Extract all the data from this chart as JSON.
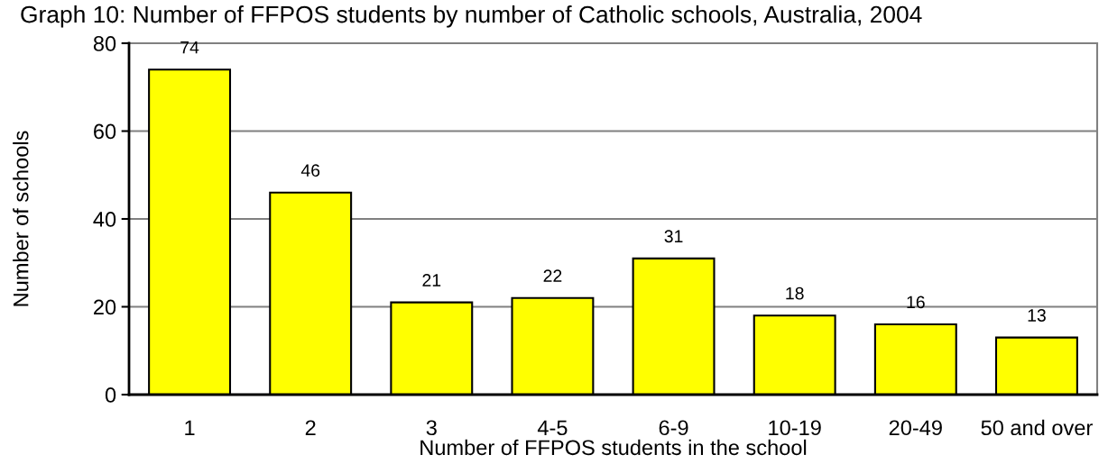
{
  "chart_data": {
    "type": "bar",
    "title": "Graph 10: Number of FFPOS students by number of Catholic schools, Australia, 2004",
    "xlabel": "Number of FFPOS students in the school",
    "ylabel": "Number of schools",
    "categories": [
      "1",
      "2",
      "3",
      "4-5",
      "6-9",
      "10-19",
      "20-49",
      "50 and over"
    ],
    "values": [
      74,
      46,
      21,
      22,
      31,
      18,
      16,
      13
    ],
    "color": "#ffff00",
    "ylim": [
      0,
      80
    ],
    "yticks": [
      0,
      20,
      40,
      60,
      80
    ],
    "grid": "y",
    "data_labels": true
  }
}
